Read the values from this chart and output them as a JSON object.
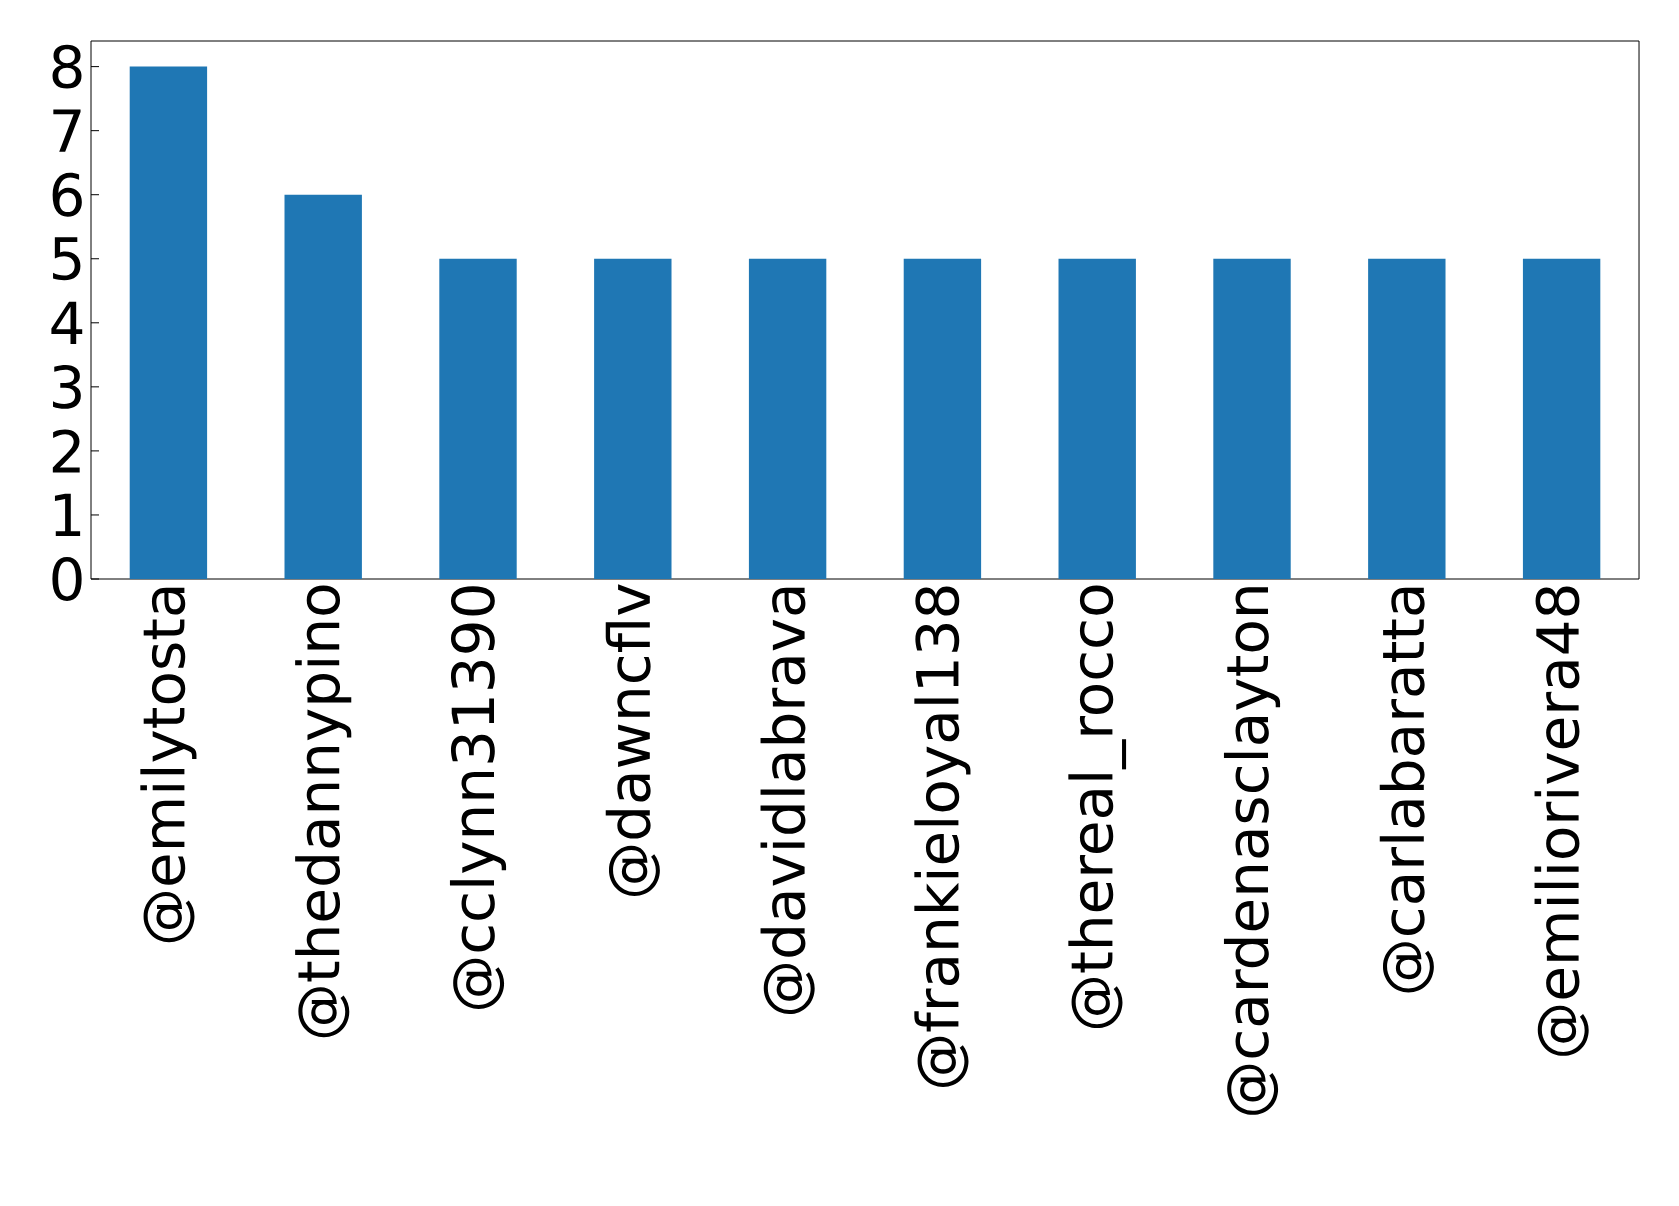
{
  "chart_data": {
    "type": "bar",
    "categories": [
      "@emilytosta",
      "@thedannypino",
      "@cclynn31390",
      "@dawncflv",
      "@davidlabrava",
      "@frankieloyal138",
      "@thereal_rocco",
      "@cardenasclayton",
      "@carlabaratta",
      "@emiliorivera48"
    ],
    "values": [
      8,
      6,
      5,
      5,
      5,
      5,
      5,
      5,
      5,
      5
    ],
    "color": "#1f77b4",
    "ylim": [
      0,
      8.4
    ],
    "yticks": [
      0,
      1,
      2,
      3,
      4,
      5,
      6,
      7,
      8
    ]
  }
}
